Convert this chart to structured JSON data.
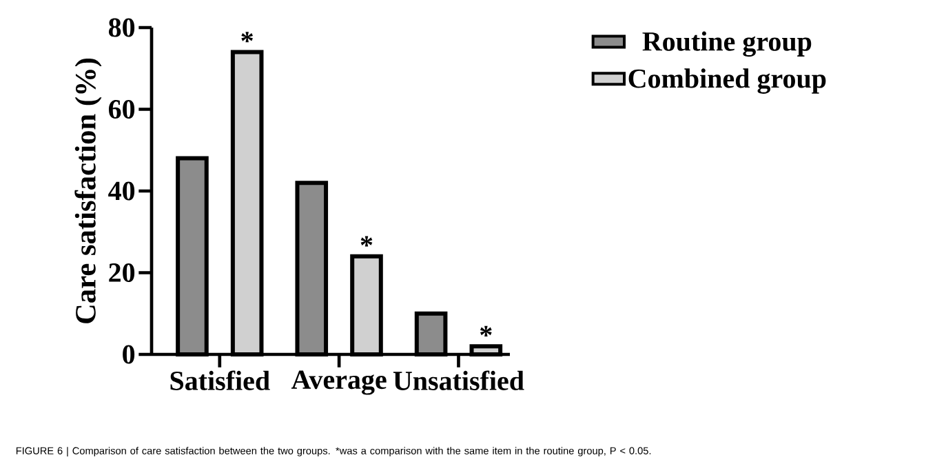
{
  "chart_data": {
    "type": "bar",
    "ylabel": "Care satisfaction (%)",
    "categories": [
      "Satisfied",
      "Average",
      "Unsatisfied"
    ],
    "series": [
      {
        "name": "Routine group",
        "color": "#8c8c8c",
        "values": [
          48,
          42,
          10
        ]
      },
      {
        "name": "Combined group",
        "color": "#d0d0d0",
        "values": [
          74,
          24,
          2
        ]
      }
    ],
    "ylim": [
      0,
      80
    ],
    "yticks": [
      0,
      20,
      40,
      60,
      80
    ],
    "grid": false,
    "legend": "top right",
    "annotations": [
      "*",
      "*",
      "*",
      "FIGURE 6 | Comparison of care satisfaction between the two groups. *was a comparison with the same item in the routine group, P < 0.05."
    ]
  }
}
